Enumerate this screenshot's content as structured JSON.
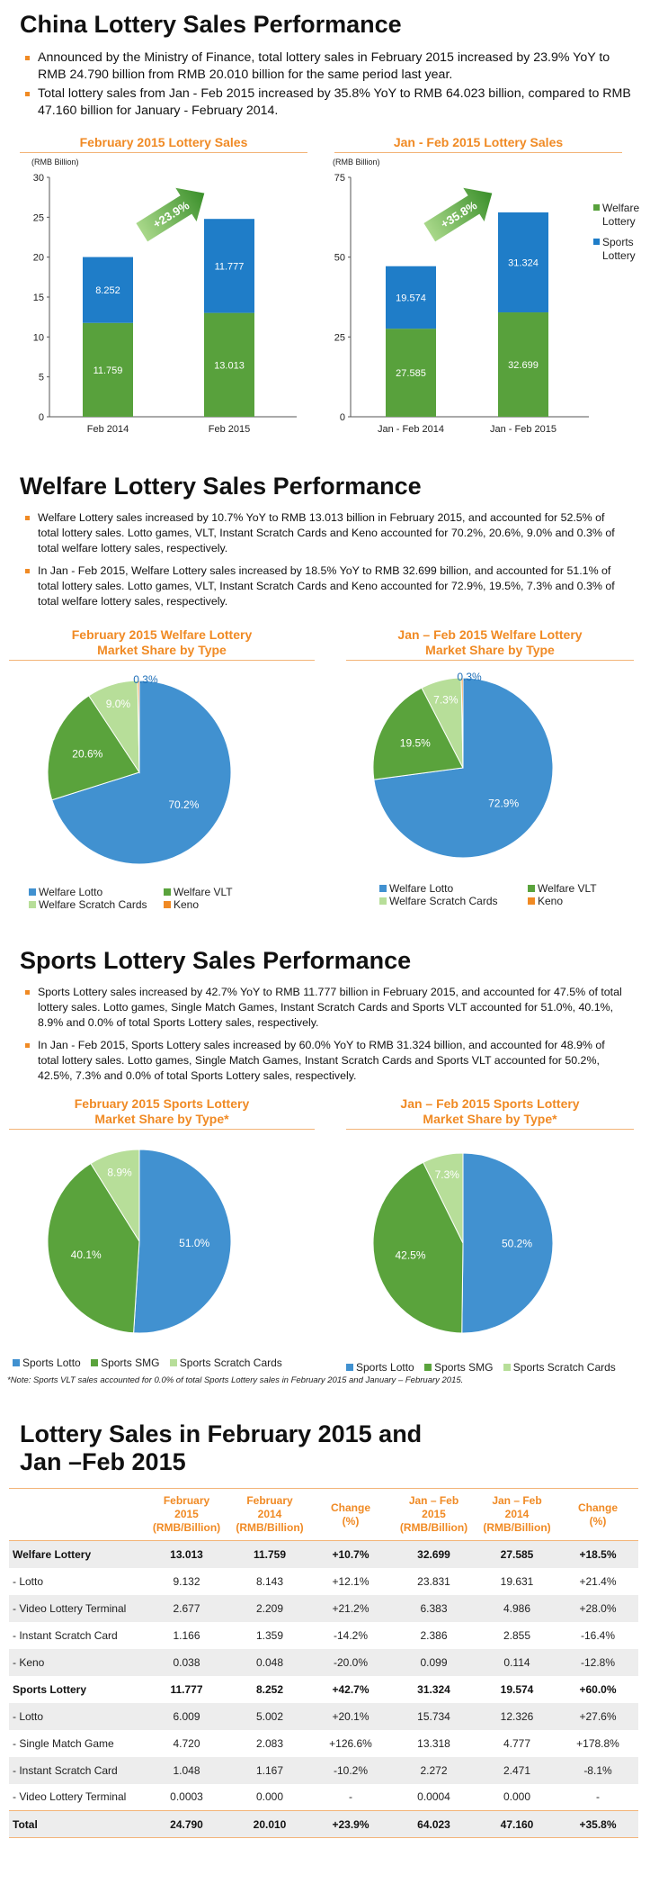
{
  "section1": {
    "title": "China Lottery Sales Performance",
    "bullets": [
      "Announced by the Ministry of Finance, total lottery sales in February 2015 increased by 23.9% YoY to RMB 24.790 billion from RMB 20.010 billion for the same period last year.",
      "Total lottery sales from Jan - Feb 2015 increased by 35.8% YoY to RMB 64.023 billion, compared to RMB 47.160 billion for January - February 2014."
    ]
  },
  "section2": {
    "title": "Welfare Lottery Sales Performance",
    "bullets": [
      "Welfare Lottery sales increased by 10.7% YoY to RMB 13.013 billion in February 2015, and accounted for 52.5% of total lottery sales. Lotto games, VLT, Instant Scratch Cards and Keno accounted for 70.2%, 20.6%, 9.0% and 0.3% of total welfare lottery sales, respectively.",
      "In Jan - Feb 2015, Welfare Lottery sales increased by 18.5% YoY to RMB 32.699 billion, and accounted for 51.1% of total lottery sales. Lotto games, VLT, Instant Scratch Cards and Keno accounted for 72.9%, 19.5%, 7.3% and 0.3% of total welfare lottery sales, respectively."
    ]
  },
  "section3": {
    "title": "Sports Lottery Sales Performance",
    "bullets": [
      "Sports Lottery sales increased by 42.7% YoY to RMB 11.777 billion in February 2015, and accounted for 47.5% of total lottery sales. Lotto games, Single Match Games, Instant Scratch Cards and Sports VLT accounted for 51.0%, 40.1%, 8.9% and 0.0% of total Sports Lottery sales, respectively.",
      "In Jan - Feb 2015, Sports Lottery sales increased by 60.0% YoY to RMB 31.324 billion, and accounted for 48.9% of total lottery sales. Lotto games, Single Match Games, Instant Scratch Cards and Sports VLT accounted for 50.2%, 42.5%, 7.3% and 0.0% of total Sports Lottery sales, respectively."
    ],
    "note": "*Note: Sports VLT sales accounted for 0.0% of total Sports Lottery sales in February 2015 and January – February 2015."
  },
  "section4": {
    "title_line1": "Lottery Sales in February 2015 and",
    "title_line2": "Jan –Feb 2015"
  },
  "colors": {
    "welfare": "#58a13c",
    "sports": "#1f7dc8",
    "lotto": "#4191d0",
    "vlt": "#5aa33c",
    "scratch": "#b7de99",
    "keno": "#f08a24",
    "accent": "#f08a24"
  },
  "chart_data": [
    {
      "type": "bar",
      "title": "February 2015 Lottery Sales",
      "ylabel": "(RMB Billion)",
      "ylim": [
        0,
        30
      ],
      "yticks": [
        0,
        5,
        10,
        15,
        20,
        25,
        30
      ],
      "categories": [
        "Feb 2014",
        "Feb 2015"
      ],
      "series": [
        {
          "name": "Welfare Lottery",
          "values": [
            11.759,
            13.013
          ]
        },
        {
          "name": "Sports Lottery",
          "values": [
            8.252,
            11.777
          ]
        }
      ],
      "labels": {
        "welfare": [
          "11.759",
          "13.013"
        ],
        "sports": [
          "8.252",
          "11.777"
        ]
      },
      "arrow_label": "+23.9%"
    },
    {
      "type": "bar",
      "title": "Jan - Feb 2015 Lottery Sales",
      "ylabel": "(RMB Billion)",
      "ylim": [
        0,
        75
      ],
      "yticks": [
        0,
        25,
        50,
        75
      ],
      "categories": [
        "Jan - Feb 2014",
        "Jan - Feb 2015"
      ],
      "series": [
        {
          "name": "Welfare Lottery",
          "values": [
            27.585,
            32.699
          ]
        },
        {
          "name": "Sports Lottery",
          "values": [
            19.574,
            31.324
          ]
        }
      ],
      "labels": {
        "welfare": [
          "27.585",
          "32.699"
        ],
        "sports": [
          "19.574",
          "31.324"
        ]
      },
      "arrow_label": "+35.8%",
      "legend": [
        {
          "line1": "Welfare",
          "line2": "Lottery"
        },
        {
          "line1": "Sports",
          "line2": "Lottery"
        }
      ]
    },
    {
      "type": "pie",
      "title_line1": "February 2015 Welfare Lottery",
      "title_line2": "Market Share by Type",
      "slices": [
        {
          "name": "Welfare Lotto",
          "value": 70.2,
          "label": "70.2%"
        },
        {
          "name": "Welfare VLT",
          "value": 20.6,
          "label": "20.6%"
        },
        {
          "name": "Welfare Scratch Cards",
          "value": 9.0,
          "label": "9.0%"
        },
        {
          "name": "Keno",
          "value": 0.3,
          "label": "0.3%"
        }
      ]
    },
    {
      "type": "pie",
      "title_line1": "Jan – Feb 2015 Welfare Lottery",
      "title_line2": "Market Share by Type",
      "slices": [
        {
          "name": "Welfare Lotto",
          "value": 72.9,
          "label": "72.9%"
        },
        {
          "name": "Welfare VLT",
          "value": 19.5,
          "label": "19.5%"
        },
        {
          "name": "Welfare Scratch Cards",
          "value": 7.3,
          "label": "7.3%"
        },
        {
          "name": "Keno",
          "value": 0.3,
          "label": "0.3%"
        }
      ]
    },
    {
      "type": "pie",
      "title_line1": "February 2015 Sports Lottery",
      "title_line2": "Market Share by Type*",
      "slices": [
        {
          "name": "Sports Lotto",
          "value": 51.0,
          "label": "51.0%"
        },
        {
          "name": "Sports SMG",
          "value": 40.1,
          "label": "40.1%"
        },
        {
          "name": "Sports Scratch Cards",
          "value": 8.9,
          "label": "8.9%"
        }
      ]
    },
    {
      "type": "pie",
      "title_line1": "Jan – Feb 2015 Sports Lottery",
      "title_line2": "Market Share by Type*",
      "slices": [
        {
          "name": "Sports Lotto",
          "value": 50.2,
          "label": "50.2%"
        },
        {
          "name": "Sports SMG",
          "value": 42.5,
          "label": "42.5%"
        },
        {
          "name": "Sports Scratch Cards",
          "value": 7.3,
          "label": "7.3%"
        }
      ]
    },
    {
      "type": "table",
      "columns": [
        "",
        "February 2015 (RMB/Billion)",
        "February 2014 (RMB/Billion)",
        "Change (%)",
        "Jan – Feb 2015 (RMB/Billion)",
        "Jan – Feb 2014 (RMB/Billion)",
        "Change (%)"
      ],
      "header_lines": [
        [
          "",
          ""
        ],
        [
          "February",
          "2015",
          "(RMB/Billion)"
        ],
        [
          "February",
          "2014",
          "(RMB/Billion)"
        ],
        [
          "Change",
          "(%)"
        ],
        [
          "Jan – Feb",
          "2015",
          "(RMB/Billion)"
        ],
        [
          "Jan – Feb",
          "2014",
          "(RMB/Billion)"
        ],
        [
          "Change",
          "(%)"
        ]
      ],
      "rows": [
        {
          "cells": [
            "Welfare Lottery",
            "13.013",
            "11.759",
            "+10.7%",
            "32.699",
            "27.585",
            "+18.5%"
          ],
          "bold": true
        },
        {
          "cells": [
            "- Lotto",
            "9.132",
            "8.143",
            "+12.1%",
            "23.831",
            "19.631",
            "+21.4%"
          ]
        },
        {
          "cells": [
            "- Video Lottery Terminal",
            "2.677",
            "2.209",
            "+21.2%",
            "6.383",
            "4.986",
            "+28.0%"
          ]
        },
        {
          "cells": [
            "- Instant Scratch Card",
            "1.166",
            "1.359",
            "-14.2%",
            "2.386",
            "2.855",
            "-16.4%"
          ]
        },
        {
          "cells": [
            "- Keno",
            "0.038",
            "0.048",
            "-20.0%",
            "0.099",
            "0.114",
            "-12.8%"
          ]
        },
        {
          "cells": [
            "Sports Lottery",
            "11.777",
            "8.252",
            "+42.7%",
            "31.324",
            "19.574",
            "+60.0%"
          ],
          "bold": true
        },
        {
          "cells": [
            "- Lotto",
            "6.009",
            "5.002",
            "+20.1%",
            "15.734",
            "12.326",
            "+27.6%"
          ]
        },
        {
          "cells": [
            "- Single Match Game",
            "4.720",
            "2.083",
            "+126.6%",
            "13.318",
            "4.777",
            "+178.8%"
          ]
        },
        {
          "cells": [
            "- Instant Scratch Card",
            "1.048",
            "1.167",
            "-10.2%",
            "2.272",
            "2.471",
            "-8.1%"
          ]
        },
        {
          "cells": [
            "- Video Lottery Terminal",
            "0.0003",
            "0.000",
            "-",
            "0.0004",
            "0.000",
            "-"
          ]
        },
        {
          "cells": [
            "Total",
            "24.790",
            "20.010",
            "+23.9%",
            "64.023",
            "47.160",
            "+35.8%"
          ],
          "bold": true,
          "total": true
        }
      ]
    }
  ]
}
